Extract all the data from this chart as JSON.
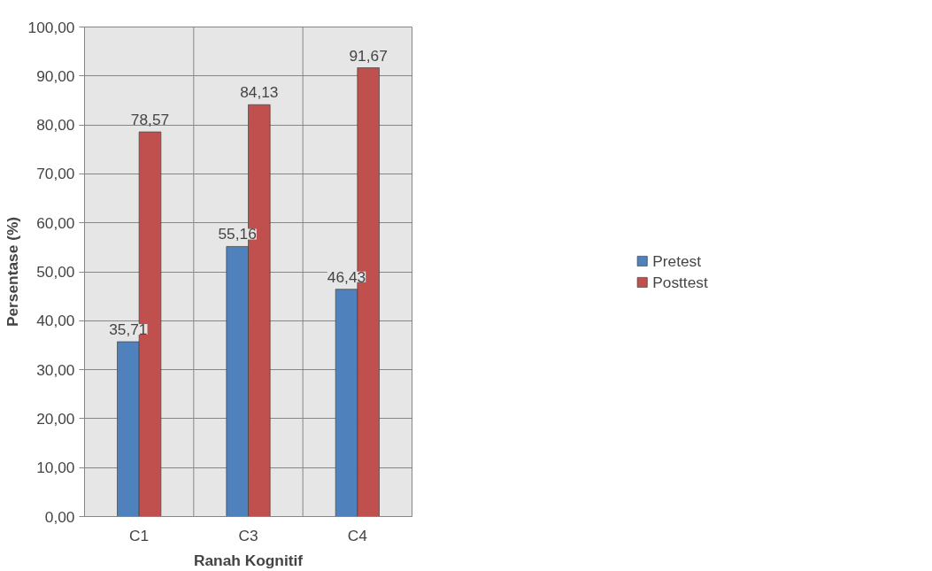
{
  "chart_data": {
    "type": "bar",
    "xlabel": "Ranah Kognitif",
    "ylabel": "Persentase (%)",
    "categories": [
      "C1",
      "C3",
      "C4"
    ],
    "series": [
      {
        "name": "Pretest",
        "color": "#4f81bd",
        "values": [
          35.71,
          55.16,
          46.43
        ],
        "value_labels": [
          "35,71",
          "55,16",
          "46,43"
        ]
      },
      {
        "name": "Posttest",
        "color": "#c0504d",
        "values": [
          78.57,
          84.13,
          91.67
        ],
        "value_labels": [
          "78,57",
          "84,13",
          "91,67"
        ]
      }
    ],
    "ylim": [
      0,
      100
    ],
    "yticks": [
      {
        "value": 0,
        "label": "0,00"
      },
      {
        "value": 10,
        "label": "10,00"
      },
      {
        "value": 20,
        "label": "20,00"
      },
      {
        "value": 30,
        "label": "30,00"
      },
      {
        "value": 40,
        "label": "40,00"
      },
      {
        "value": 50,
        "label": "50,00"
      },
      {
        "value": 60,
        "label": "60,00"
      },
      {
        "value": 70,
        "label": "70,00"
      },
      {
        "value": 80,
        "label": "80,00"
      },
      {
        "value": 90,
        "label": "90,00"
      },
      {
        "value": 100,
        "label": "100,00"
      }
    ],
    "grid": true,
    "legend": "right"
  }
}
